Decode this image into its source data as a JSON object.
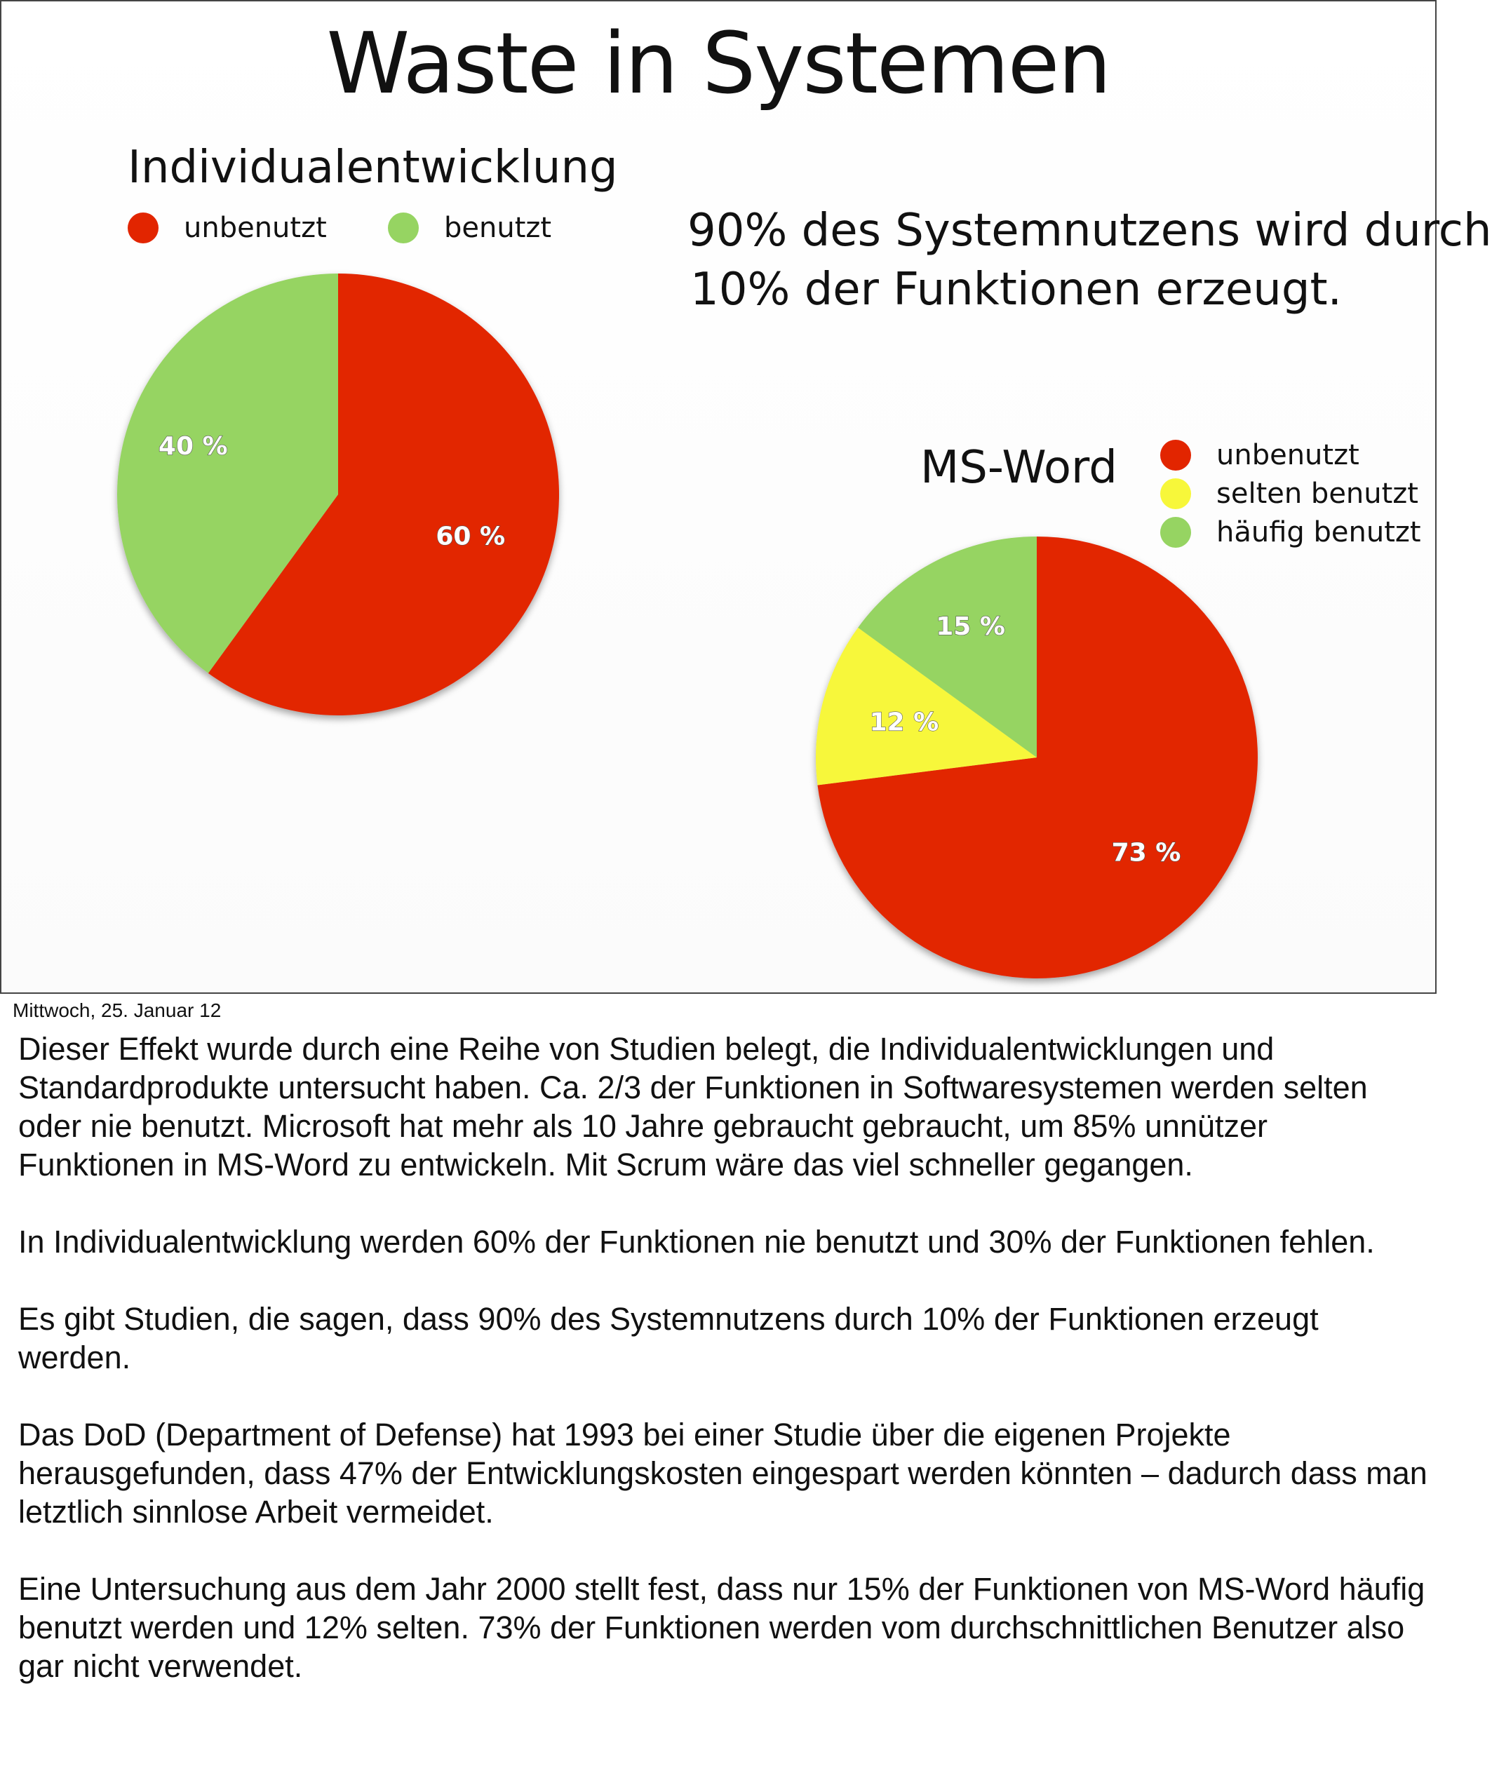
{
  "slide": {
    "title": "Waste in Systemen",
    "callout_lines": [
      "90% des Systemnutzens wird durch",
      "10% der Funktionen erzeugt."
    ]
  },
  "chart_data": [
    {
      "type": "pie",
      "title": "Individualentwicklung",
      "legend_placement": "top",
      "labels": [
        "unbenutzt",
        "benutzt"
      ],
      "values": [
        60,
        40
      ],
      "value_labels": [
        "60 %",
        "40 %"
      ],
      "colors": [
        "#e22500",
        "#96d462"
      ]
    },
    {
      "type": "pie",
      "title": "MS-Word",
      "legend_placement": "right of title",
      "labels": [
        "unbenutzt",
        "selten benutzt",
        "häufig benutzt"
      ],
      "values": [
        73,
        12,
        15
      ],
      "value_labels": [
        "73 %",
        "12 %",
        "15 %"
      ],
      "colors": [
        "#e22500",
        "#f7f73a",
        "#96d462"
      ]
    }
  ],
  "footer": {
    "date": "Mittwoch, 25. Januar 12"
  },
  "notes": [
    "Dieser Effekt wurde durch eine Reihe von Studien belegt, die Individualentwicklungen und Standardprodukte untersucht haben. Ca. 2/3 der Funktionen in Softwaresystemen werden selten oder nie benutzt. Microsoft hat mehr als 10 Jahre gebraucht gebraucht, um 85% unnützer Funktionen in MS-Word zu entwickeln. Mit Scrum wäre das viel schneller gegangen.",
    "In Individualentwicklung werden 60% der Funktionen nie benutzt und 30% der Funktionen fehlen.",
    "Es gibt Studien, die sagen, dass 90% des Systemnutzens durch 10% der Funktionen erzeugt werden.",
    "Das DoD (Department of Defense) hat 1993 bei einer Studie über die eigenen Projekte herausgefunden, dass 47% der Entwicklungskosten eingespart werden könnten – dadurch dass man letztlich sinnlose Arbeit vermeidet.",
    "Eine Untersuchung aus dem Jahr 2000 stellt fest, dass nur 15% der Funktionen von MS-Word häufig benutzt werden und 12% selten. 73% der Funktionen werden vom durchschnittlichen Benutzer also gar nicht verwendet."
  ]
}
